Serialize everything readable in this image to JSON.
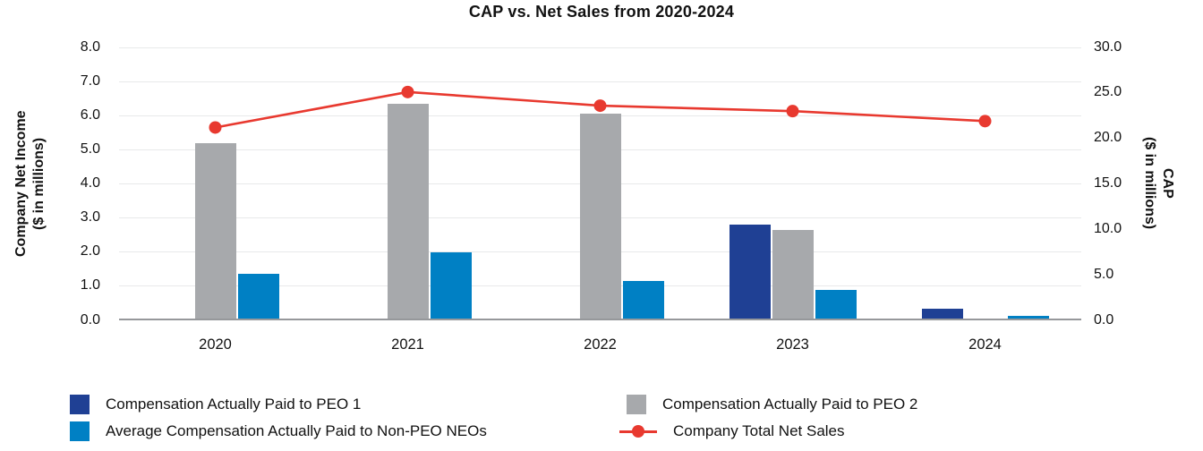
{
  "title": "CAP vs. Net Sales from 2020-2024",
  "axes": {
    "left": {
      "title_line1": "Company Net Income",
      "title_line2": "($ in millions)",
      "ticks": [
        "0.0",
        "1.0",
        "2.0",
        "3.0",
        "4.0",
        "5.0",
        "6.0",
        "7.0",
        "8.0"
      ],
      "max": 8
    },
    "right": {
      "title_line1": "CAP",
      "title_line2": "($ in millions)",
      "ticks": [
        "0.0",
        "5.0",
        "10.0",
        "15.0",
        "20.0",
        "25.0",
        "30.0"
      ],
      "max": 30
    }
  },
  "chart_data": {
    "type": "bar+line",
    "title": "CAP vs. Net Sales from 2020-2024",
    "categories": [
      "2020",
      "2021",
      "2022",
      "2023",
      "2024"
    ],
    "left_ylim": [
      0,
      8
    ],
    "right_ylim": [
      0,
      30
    ],
    "grid": true,
    "legend_position": "bottom",
    "series": [
      {
        "name": "Compensation Actually Paid to PEO 1",
        "type": "bar",
        "axis": "left",
        "color": "#1f4094",
        "values": [
          0,
          0,
          0,
          2.75,
          0.3
        ]
      },
      {
        "name": "Compensation Actually Paid to PEO 2",
        "type": "bar",
        "axis": "left",
        "color": "#a7a9ac",
        "values": [
          5.15,
          6.3,
          6.0,
          2.6,
          0
        ]
      },
      {
        "name": "Average Compensation Actually Paid to Non-PEO NEOs",
        "type": "bar",
        "axis": "left",
        "color": "#0080c4",
        "values": [
          1.3,
          1.95,
          1.1,
          0.85,
          0.07
        ]
      },
      {
        "name": "Company Total Net Sales",
        "type": "line",
        "axis": "right",
        "color": "#e8392f",
        "values": [
          21.2,
          25.1,
          23.6,
          23.0,
          21.9
        ]
      }
    ]
  },
  "legend": {
    "items": [
      {
        "label": "Compensation Actually Paid to PEO 1",
        "marker": "square",
        "color": "#1f4094"
      },
      {
        "label": "Compensation Actually Paid to PEO 2",
        "marker": "square",
        "color": "#a7a9ac"
      },
      {
        "label": "Average Compensation Actually Paid to Non-PEO NEOs",
        "marker": "square",
        "color": "#0080c4"
      },
      {
        "label": "Company Total Net Sales",
        "marker": "line",
        "color": "#e8392f"
      }
    ]
  },
  "colors": {
    "gridline": "#e8e9ea",
    "axis_line": "#96989b",
    "text": "#111111"
  }
}
